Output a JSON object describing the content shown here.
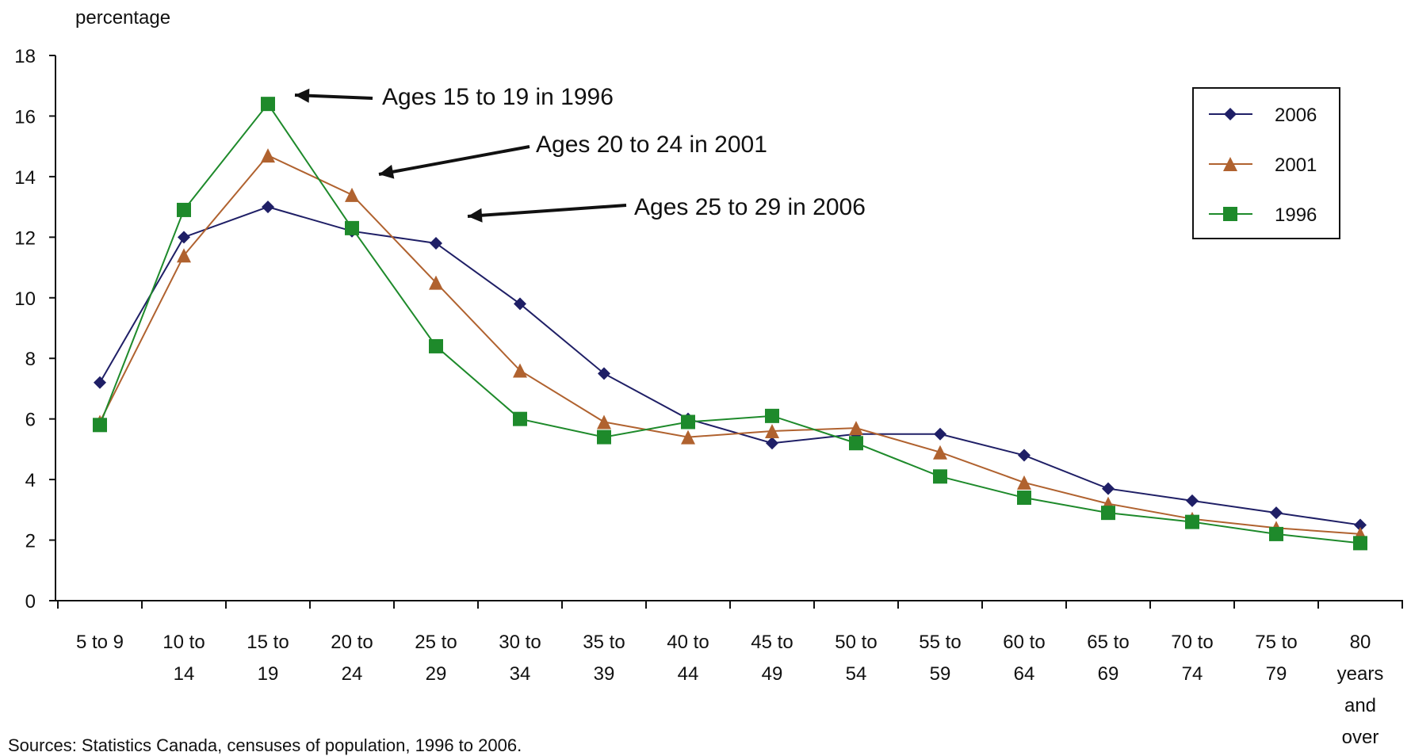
{
  "chart_data": {
    "type": "line",
    "title": "",
    "xlabel": "",
    "ylabel": "percentage",
    "ylim": [
      0,
      18
    ],
    "yticks": [
      0,
      2,
      4,
      6,
      8,
      10,
      12,
      14,
      16,
      18
    ],
    "grid": false,
    "legend_position": "top-right",
    "categories": [
      [
        "5 to 9"
      ],
      [
        "10 to",
        "14"
      ],
      [
        "15 to",
        "19"
      ],
      [
        "20 to",
        "24"
      ],
      [
        "25 to",
        "29"
      ],
      [
        "30 to",
        "34"
      ],
      [
        "35 to",
        "39"
      ],
      [
        "40 to",
        "44"
      ],
      [
        "45 to",
        "49"
      ],
      [
        "50 to",
        "54"
      ],
      [
        "55 to",
        "59"
      ],
      [
        "60 to",
        "64"
      ],
      [
        "65 to",
        "69"
      ],
      [
        "70 to",
        "74"
      ],
      [
        "75 to",
        "79"
      ],
      [
        "80",
        "years",
        "and",
        "over"
      ]
    ],
    "series": [
      {
        "name": "2006",
        "marker": "diamond",
        "color": "#1f1f66",
        "values": [
          7.2,
          12.0,
          13.0,
          12.2,
          11.8,
          9.8,
          7.5,
          6.0,
          5.2,
          5.5,
          5.5,
          4.8,
          3.7,
          3.3,
          2.9,
          2.5
        ]
      },
      {
        "name": "2001",
        "marker": "triangle",
        "color": "#b0622f",
        "values": [
          5.9,
          11.4,
          14.7,
          13.4,
          10.5,
          7.6,
          5.9,
          5.4,
          5.6,
          5.7,
          4.9,
          3.9,
          3.2,
          2.7,
          2.4,
          2.2
        ]
      },
      {
        "name": "1996",
        "marker": "square",
        "color": "#1e8a2b",
        "values": [
          5.8,
          12.9,
          16.4,
          12.3,
          8.4,
          6.0,
          5.4,
          5.9,
          6.1,
          5.2,
          4.1,
          3.4,
          2.9,
          2.6,
          2.2,
          1.9
        ]
      }
    ],
    "annotations": [
      {
        "text": "Ages 15 to 19 in 1996"
      },
      {
        "text": "Ages 20 to 24 in 2001"
      },
      {
        "text": "Ages 25 to 29 in 2006"
      }
    ]
  },
  "footer": {
    "source": "Sources: Statistics Canada, censuses of population, 1996 to 2006."
  }
}
